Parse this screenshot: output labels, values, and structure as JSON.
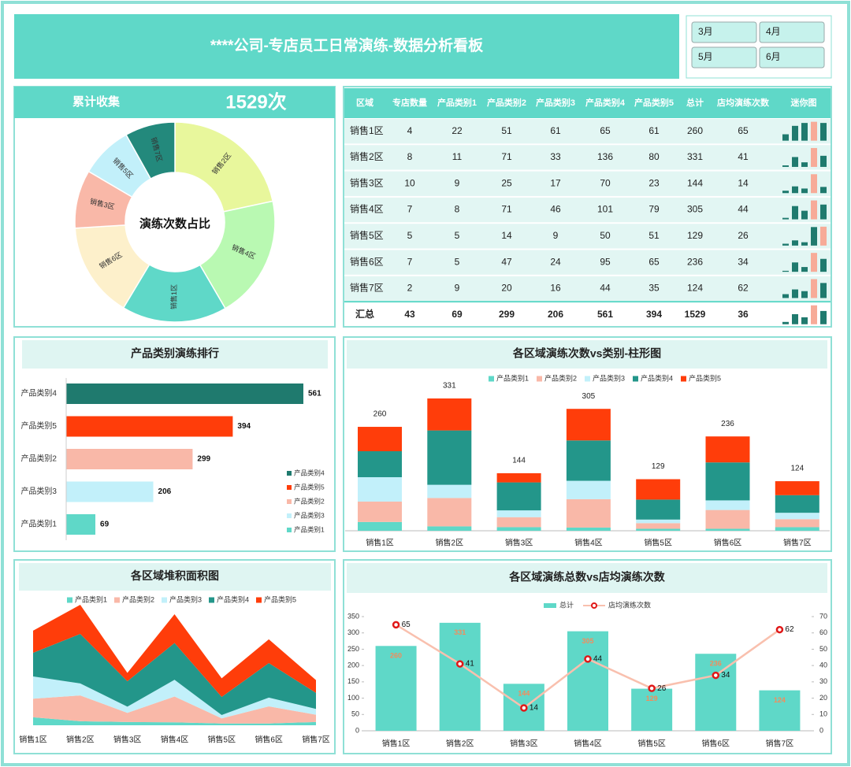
{
  "header": {
    "title": "****公司-专店员工日常演练-数据分析看板",
    "months": [
      "3月",
      "4月",
      "5月",
      "6月"
    ]
  },
  "kpi": {
    "label": "累计收集",
    "value": {
      "value": 1529,
      "label": "1529次"
    }
  },
  "table": {
    "columns": [
      "区域",
      "专店数量",
      "产品类别1",
      "产品类别2",
      "产品类别3",
      "产品类别4",
      "产品类别5",
      "总计",
      "店均演练次数",
      "迷你图"
    ],
    "rows": [
      [
        "销售1区",
        4,
        22,
        51,
        61,
        65,
        61,
        260,
        65
      ],
      [
        "销售2区",
        8,
        11,
        71,
        33,
        136,
        80,
        331,
        41
      ],
      [
        "销售3区",
        10,
        9,
        25,
        17,
        70,
        23,
        144,
        14
      ],
      [
        "销售4区",
        7,
        8,
        71,
        46,
        101,
        79,
        305,
        44
      ],
      [
        "销售5区",
        5,
        5,
        14,
        9,
        50,
        51,
        129,
        26
      ],
      [
        "销售6区",
        7,
        5,
        47,
        24,
        95,
        65,
        236,
        34
      ],
      [
        "销售7区",
        2,
        9,
        20,
        16,
        44,
        35,
        124,
        62
      ]
    ],
    "total": [
      "汇总",
      43,
      69,
      299,
      206,
      561,
      394,
      1529,
      36
    ],
    "sparkline_colors": {
      "bar": "#1f7a6e",
      "max": "#f7ab98"
    }
  },
  "chart_data": [
    {
      "type": "pie",
      "center_text": "演练次数占比",
      "categories": [
        "销售2区",
        "销售4区",
        "销售1区",
        "销售6区",
        "销售3区",
        "销售5区",
        "销售7区"
      ],
      "values": [
        331,
        305,
        260,
        236,
        144,
        129,
        124
      ],
      "colors": [
        "#e8f79c",
        "#b9f9b2",
        "#5fd8c8",
        "#fdf0cb",
        "#f9b8a8",
        "#c2f0fa",
        "#23897c"
      ]
    },
    {
      "type": "hbar",
      "title": "产品类别演练排行",
      "categories": [
        "产品类别4",
        "产品类别5",
        "产品类别2",
        "产品类别3",
        "产品类别1"
      ],
      "values": [
        561,
        394,
        299,
        206,
        69
      ],
      "colors": [
        "#1f7a6e",
        "#ff3d0a",
        "#f9b8a8",
        "#c2f0fa",
        "#5fd8c8"
      ],
      "legend": "right"
    },
    {
      "type": "stacked_bar",
      "title": "各区域演练次数vs类别-柱形图",
      "categories": [
        "销售1区",
        "销售2区",
        "销售3区",
        "销售4区",
        "销售5区",
        "销售6区",
        "销售7区"
      ],
      "series": [
        {
          "name": "产品类别1",
          "color": "#5fd8c8",
          "values": [
            22,
            11,
            9,
            8,
            5,
            5,
            9
          ]
        },
        {
          "name": "产品类别2",
          "color": "#f9b8a8",
          "values": [
            51,
            71,
            25,
            71,
            14,
            47,
            20
          ]
        },
        {
          "name": "产品类别3",
          "color": "#c2f0fa",
          "values": [
            61,
            33,
            17,
            46,
            9,
            24,
            16
          ]
        },
        {
          "name": "产品类别4",
          "color": "#23968a",
          "values": [
            65,
            136,
            70,
            101,
            50,
            95,
            44
          ]
        },
        {
          "name": "产品类别5",
          "color": "#ff3d0a",
          "values": [
            61,
            80,
            23,
            79,
            51,
            65,
            35
          ]
        }
      ],
      "totals": [
        260,
        331,
        144,
        305,
        129,
        236,
        124
      ],
      "legend": "top"
    },
    {
      "type": "stacked_area",
      "title": "各区域堆积面积图",
      "categories": [
        "销售1区",
        "销售2区",
        "销售3区",
        "销售4区",
        "销售5区",
        "销售6区",
        "销售7区"
      ],
      "series": [
        {
          "name": "产品类别1",
          "color": "#5fd8c8",
          "values": [
            22,
            11,
            9,
            8,
            5,
            5,
            9
          ]
        },
        {
          "name": "产品类别2",
          "color": "#f9b8a8",
          "values": [
            51,
            71,
            25,
            71,
            14,
            47,
            20
          ]
        },
        {
          "name": "产品类别3",
          "color": "#c2f0fa",
          "values": [
            61,
            33,
            17,
            46,
            9,
            24,
            16
          ]
        },
        {
          "name": "产品类别4",
          "color": "#23968a",
          "values": [
            65,
            136,
            70,
            101,
            50,
            95,
            44
          ]
        },
        {
          "name": "产品类别5",
          "color": "#ff3d0a",
          "values": [
            61,
            80,
            23,
            79,
            51,
            65,
            35
          ]
        }
      ],
      "legend": "top"
    },
    {
      "type": "combo",
      "title": "各区域演练总数vs店均演练次数",
      "categories": [
        "销售1区",
        "销售2区",
        "销售3区",
        "销售4区",
        "销售5区",
        "销售6区",
        "销售7区"
      ],
      "series": [
        {
          "name": "总计",
          "type": "bar",
          "color": "#5fd8c8",
          "label_color": "#f28c5c",
          "values": [
            260,
            331,
            144,
            305,
            129,
            236,
            124
          ]
        },
        {
          "name": "店均演练次数",
          "type": "line",
          "axis": "y2",
          "color": "#f9c0ae",
          "marker_color": "#e01818",
          "values": [
            65,
            41,
            14,
            44,
            26,
            34,
            62
          ]
        }
      ],
      "ylim": [
        0,
        350
      ],
      "yticks": [
        0,
        50,
        100,
        150,
        200,
        250,
        300,
        350
      ],
      "y2lim": [
        0,
        70
      ],
      "y2ticks": [
        0,
        10,
        20,
        30,
        40,
        50,
        60,
        70
      ],
      "legend": "top"
    }
  ]
}
